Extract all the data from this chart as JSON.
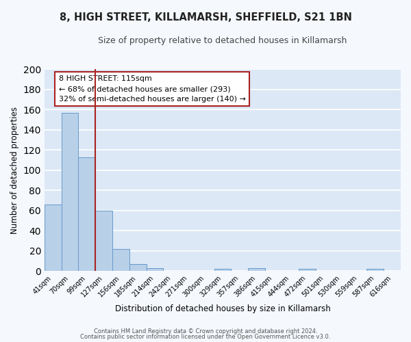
{
  "title": "8, HIGH STREET, KILLAMARSH, SHEFFIELD, S21 1BN",
  "subtitle": "Size of property relative to detached houses in Killamarsh",
  "xlabel": "Distribution of detached houses by size in Killamarsh",
  "ylabel": "Number of detached properties",
  "bin_labels": [
    "41sqm",
    "70sqm",
    "99sqm",
    "127sqm",
    "156sqm",
    "185sqm",
    "214sqm",
    "242sqm",
    "271sqm",
    "300sqm",
    "329sqm",
    "357sqm",
    "386sqm",
    "415sqm",
    "444sqm",
    "472sqm",
    "501sqm",
    "530sqm",
    "559sqm",
    "587sqm",
    "616sqm"
  ],
  "bar_heights": [
    66,
    157,
    113,
    60,
    22,
    7,
    3,
    0,
    0,
    0,
    2,
    0,
    3,
    0,
    0,
    2,
    0,
    0,
    0,
    2,
    0
  ],
  "bar_color": "#b8d0e8",
  "bar_edgecolor": "#6699cc",
  "background_color": "#dce8f5",
  "grid_color": "#ffffff",
  "marker_color": "#aa2222",
  "annotation_title": "8 HIGH STREET: 115sqm",
  "annotation_line1": "← 68% of detached houses are smaller (293)",
  "annotation_line2": "32% of semi-detached houses are larger (140) →",
  "annotation_box_facecolor": "#ffffff",
  "annotation_box_edgecolor": "#aa2222",
  "ylim": [
    0,
    200
  ],
  "yticks": [
    0,
    20,
    40,
    60,
    80,
    100,
    120,
    140,
    160,
    180,
    200
  ],
  "footer1": "Contains HM Land Registry data © Crown copyright and database right 2024.",
  "footer2": "Contains public sector information licensed under the Open Government Licence v3.0.",
  "fig_facecolor": "#f5f8fd"
}
